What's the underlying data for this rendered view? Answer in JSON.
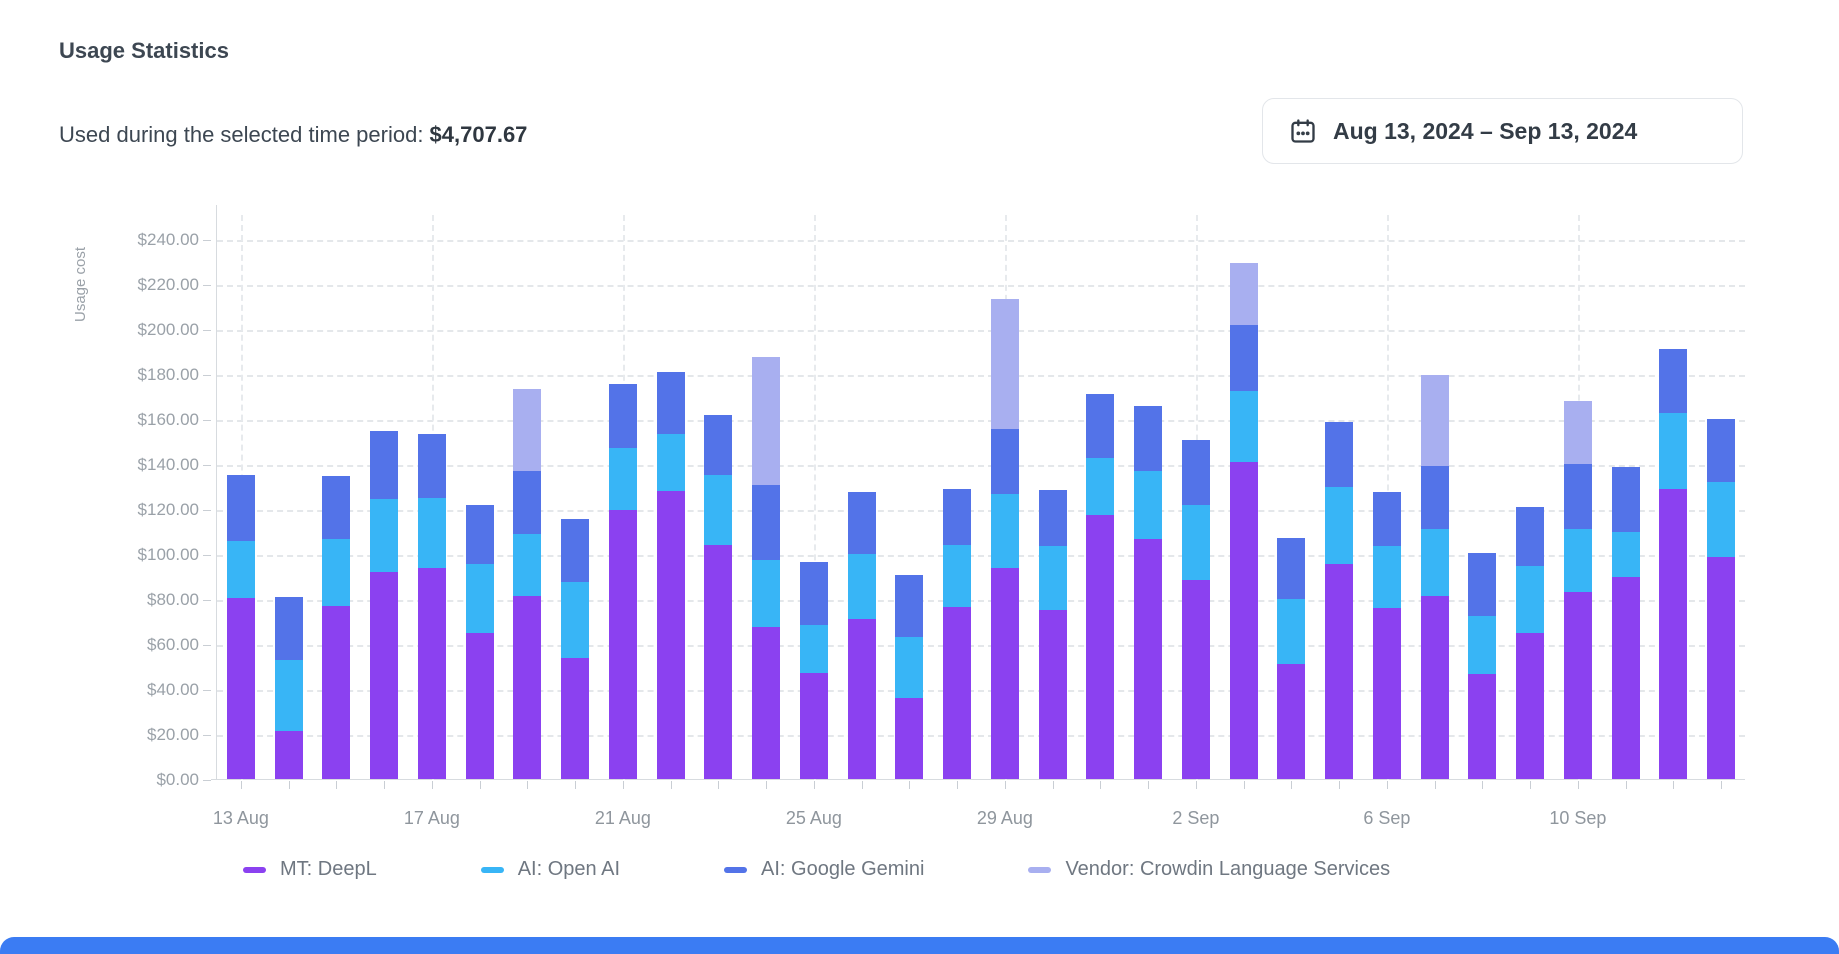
{
  "header": {
    "title": "Usage Statistics",
    "subtitle_label": "Used during the selected time period: ",
    "total": "$4,707.67"
  },
  "date_picker": {
    "icon": "calendar-icon",
    "label": "Aug 13, 2024 – Sep 13, 2024"
  },
  "chart_data": {
    "type": "bar",
    "stacked": true,
    "ylabel": "Usage cost",
    "ylim": [
      0,
      240
    ],
    "ytick_step": 20,
    "ytick_prefix": "$",
    "grid": "dashed",
    "legend_position": "bottom",
    "x_label_every": 4,
    "categories": [
      "13 Aug",
      "14 Aug",
      "15 Aug",
      "16 Aug",
      "17 Aug",
      "18 Aug",
      "19 Aug",
      "20 Aug",
      "21 Aug",
      "22 Aug",
      "23 Aug",
      "24 Aug",
      "25 Aug",
      "26 Aug",
      "27 Aug",
      "28 Aug",
      "29 Aug",
      "30 Aug",
      "31 Aug",
      "1 Sep",
      "2 Sep",
      "3 Sep",
      "4 Sep",
      "5 Sep",
      "6 Sep",
      "7 Sep",
      "8 Sep",
      "9 Sep",
      "10 Sep",
      "11 Sep",
      "12 Sep",
      "13 Sep"
    ],
    "visible_x_labels": [
      "13 Aug",
      "17 Aug",
      "21 Aug",
      "25 Aug",
      "29 Aug",
      "2 Sep",
      "6 Sep",
      "10 Sep"
    ],
    "series": [
      {
        "name": "MT: DeepL",
        "color": "#8b41f0",
        "values": [
          80.5,
          21.5,
          77,
          92,
          94,
          65,
          81.5,
          54,
          119.5,
          128,
          104,
          67.5,
          47,
          71,
          36,
          76.5,
          94,
          75,
          117.5,
          106.5,
          88.5,
          141,
          51,
          95.5,
          76,
          81.5,
          46.5,
          65,
          83,
          90,
          129,
          98.5
        ]
      },
      {
        "name": "AI: Open AI",
        "color": "#38b5f6",
        "values": [
          25.5,
          31.5,
          29.5,
          32.5,
          31,
          30.5,
          27.5,
          33.5,
          27.5,
          25.5,
          31,
          30,
          21.5,
          29,
          27,
          27.5,
          32.5,
          28.5,
          25,
          30.5,
          33.5,
          31.5,
          29,
          34.5,
          27.5,
          29.5,
          26,
          29.5,
          28,
          20,
          33.5,
          33.5
        ]
      },
      {
        "name": "AI: Google Gemini",
        "color": "#5373e8",
        "values": [
          29,
          28,
          28,
          30,
          28.5,
          26.5,
          28,
          28,
          28.5,
          27.5,
          27,
          33,
          28,
          27.5,
          27.5,
          25,
          29,
          25,
          28.5,
          29,
          28.5,
          29.5,
          27,
          28.5,
          24,
          28,
          28,
          26.5,
          29,
          28.5,
          28.5,
          28
        ]
      },
      {
        "name": "Vendor: Crowdin Language Services",
        "color": "#a8aff0",
        "values": [
          0,
          0,
          0,
          0,
          0,
          0,
          36.5,
          0,
          0,
          0,
          0,
          57,
          0,
          0,
          0,
          0,
          58,
          0,
          0,
          0,
          0,
          27.5,
          0,
          0,
          0,
          40.5,
          0,
          0,
          28,
          0,
          0,
          0
        ]
      }
    ]
  }
}
